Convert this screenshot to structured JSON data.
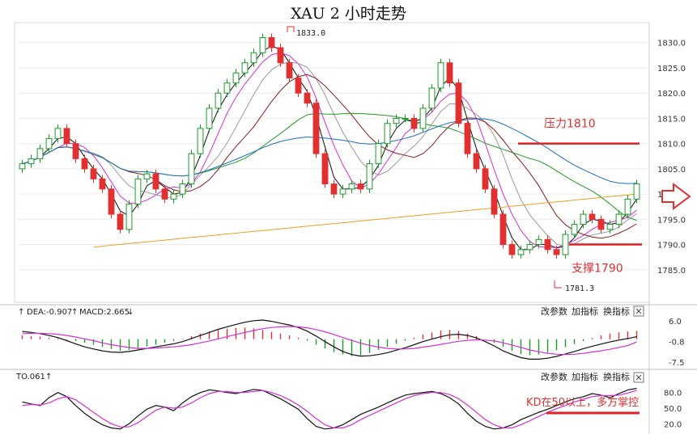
{
  "title": "XAU 2 小时走势",
  "chart_data": {
    "type": "candlestick",
    "symbol": "XAU",
    "timeframe": "2 小时",
    "price_axis": {
      "min": 1780,
      "max": 1833,
      "ticks": [
        1830.0,
        1825.0,
        1820.0,
        1815.0,
        1810.0,
        1805.0,
        1800.0,
        1795.0,
        1790.0,
        1785.0
      ]
    },
    "annotations": {
      "high_label": "1833.0",
      "low_label": "1781.3",
      "resistance_label": "压力1810",
      "resistance_price": 1810,
      "support_label": "支撑1790",
      "support_price": 1790,
      "kd_note": "KD在50以上，多方掌控"
    },
    "close_trend": [
      1806,
      1807,
      1809,
      1811,
      1813,
      1810,
      1807,
      1805,
      1803,
      1801,
      1796,
      1793,
      1798,
      1803,
      1804,
      1801,
      1799,
      1800,
      1802,
      1808,
      1813,
      1817,
      1820,
      1822,
      1824,
      1826,
      1828,
      1831,
      1829,
      1826,
      1823,
      1820,
      1818,
      1808,
      1802,
      1800,
      1801,
      1802,
      1801,
      1806,
      1810,
      1814,
      1815,
      1815,
      1813,
      1817,
      1821,
      1826,
      1822,
      1814,
      1808,
      1805,
      1801,
      1796,
      1790,
      1788,
      1789,
      1790,
      1791,
      1789,
      1788,
      1792,
      1794,
      1796,
      1795,
      1793,
      1794,
      1796,
      1799,
      1802
    ],
    "indicators": {
      "macd_panel": {
        "labels": [
          "DEA:-0.907",
          "MACD:2.665"
        ],
        "ticks": [
          6.0,
          -0.8,
          -7.5
        ],
        "range": [
          -8.5,
          7
        ],
        "histogram": [
          1.2,
          1.0,
          0.8,
          0.5,
          0.3,
          -0.2,
          -0.6,
          -1.2,
          -1.8,
          -2.5,
          -3.2,
          -3.8,
          -3.5,
          -3.0,
          -2.4,
          -1.8,
          -1.2,
          -0.6,
          0.2,
          1.0,
          1.8,
          2.5,
          3.0,
          3.4,
          3.6,
          3.8,
          3.5,
          3.0,
          2.4,
          1.8,
          1.2,
          0.5,
          -0.5,
          -1.8,
          -3.0,
          -4.2,
          -5.0,
          -5.5,
          -5.2,
          -4.5,
          -3.5,
          -2.5,
          -1.5,
          -0.5,
          0.5,
          1.5,
          2.2,
          2.8,
          3.0,
          2.6,
          1.8,
          1.0,
          0.0,
          -1.2,
          -2.5,
          -3.8,
          -4.8,
          -5.2,
          -5.0,
          -4.4,
          -3.6,
          -2.6,
          -1.6,
          -0.6,
          0.4,
          1.2,
          1.8,
          2.2,
          2.5,
          2.665
        ],
        "dif": [
          2.5,
          2.2,
          1.8,
          1.2,
          0.5,
          -0.5,
          -1.5,
          -2.5,
          -3.2,
          -3.8,
          -4.2,
          -4.3,
          -4.0,
          -3.5,
          -3.0,
          -2.5,
          -2.0,
          -1.5,
          -0.8,
          0.2,
          1.2,
          2.2,
          3.2,
          4.0,
          4.8,
          5.5,
          6.0,
          6.2,
          5.8,
          5.2,
          4.6,
          3.8,
          2.6,
          1.0,
          -0.8,
          -2.5,
          -4.0,
          -5.0,
          -5.5,
          -5.4,
          -5.0,
          -4.4,
          -3.6,
          -2.8,
          -1.8,
          -0.8,
          0.0,
          0.8,
          1.4,
          1.6,
          1.2,
          0.4,
          -0.8,
          -2.2,
          -3.8,
          -5.0,
          -6.0,
          -6.5,
          -6.5,
          -6.2,
          -5.6,
          -4.8,
          -4.0,
          -3.1,
          -2.3,
          -1.6,
          -0.9,
          -0.3,
          0.2,
          0.8
        ],
        "dea": [
          1.8,
          1.9,
          1.9,
          1.8,
          1.6,
          1.2,
          0.7,
          0.1,
          -0.5,
          -1.2,
          -1.8,
          -2.3,
          -2.7,
          -3.0,
          -3.0,
          -2.9,
          -2.7,
          -2.5,
          -2.2,
          -1.8,
          -1.2,
          -0.6,
          0.1,
          0.8,
          1.5,
          2.2,
          2.8,
          3.4,
          3.8,
          4.0,
          4.1,
          4.0,
          3.7,
          3.1,
          2.4,
          1.5,
          0.5,
          -0.4,
          -1.3,
          -2.0,
          -2.6,
          -3.0,
          -3.2,
          -3.2,
          -3.0,
          -2.6,
          -2.2,
          -1.7,
          -1.2,
          -0.7,
          -0.4,
          -0.2,
          -0.3,
          -0.6,
          -1.2,
          -1.9,
          -2.7,
          -3.5,
          -4.1,
          -4.6,
          -4.9,
          -5.0,
          -4.9,
          -4.6,
          -4.2,
          -3.8,
          -3.3,
          -2.7,
          -2.1,
          -0.907
        ]
      },
      "kd_panel": {
        "labels": [
          "TO.061"
        ],
        "ticks": [
          80.0,
          50.0,
          20.0
        ],
        "range": [
          5,
          95
        ],
        "k": [
          62,
          58,
          55,
          70,
          80,
          72,
          55,
          40,
          28,
          18,
          12,
          10,
          20,
          35,
          48,
          55,
          52,
          45,
          60,
          72,
          80,
          85,
          83,
          80,
          78,
          82,
          86,
          84,
          76,
          68,
          58,
          48,
          30,
          15,
          10,
          12,
          18,
          28,
          38,
          45,
          52,
          60,
          68,
          75,
          78,
          80,
          82,
          78,
          70,
          58,
          40,
          25,
          15,
          10,
          12,
          18,
          28,
          35,
          42,
          48,
          55,
          62,
          68,
          72,
          78,
          75,
          70,
          78,
          85,
          88
        ],
        "d": [
          55,
          57,
          56,
          60,
          68,
          72,
          66,
          54,
          42,
          30,
          20,
          14,
          14,
          22,
          34,
          46,
          52,
          50,
          52,
          60,
          70,
          78,
          82,
          82,
          80,
          80,
          82,
          84,
          80,
          74,
          66,
          56,
          44,
          30,
          18,
          12,
          12,
          18,
          28,
          36,
          44,
          52,
          60,
          68,
          74,
          78,
          80,
          80,
          76,
          68,
          56,
          42,
          28,
          18,
          12,
          12,
          18,
          26,
          34,
          42,
          49,
          55,
          62,
          67,
          72,
          74,
          74,
          75,
          79,
          84
        ]
      }
    }
  },
  "toolbar_macd": {
    "change_params": "改参数",
    "add_indicator": "加指标",
    "switch_indicator": "换指标",
    "close_icon": "close-icon",
    "arrow_icon": "down-arrow-icon"
  },
  "toolbar_kd": {
    "change_params": "改参数",
    "add_indicator": "加指标",
    "switch_indicator": "换指标",
    "close_icon": "close-icon",
    "arrow_icon": "up-arrow-icon"
  },
  "colors": {
    "up": "#1a9a28",
    "down": "#e03030",
    "ma_black": "#111111",
    "ma_magenta": "#d62fd6",
    "ma_gray": "#9a9a9a",
    "ma_darkred": "#8b1c1c",
    "ma_green": "#22992b",
    "ma_blue": "#1f6fbf",
    "ma_orange": "#f0a020",
    "arrow": "#e03030",
    "line_red": "#e02020"
  }
}
